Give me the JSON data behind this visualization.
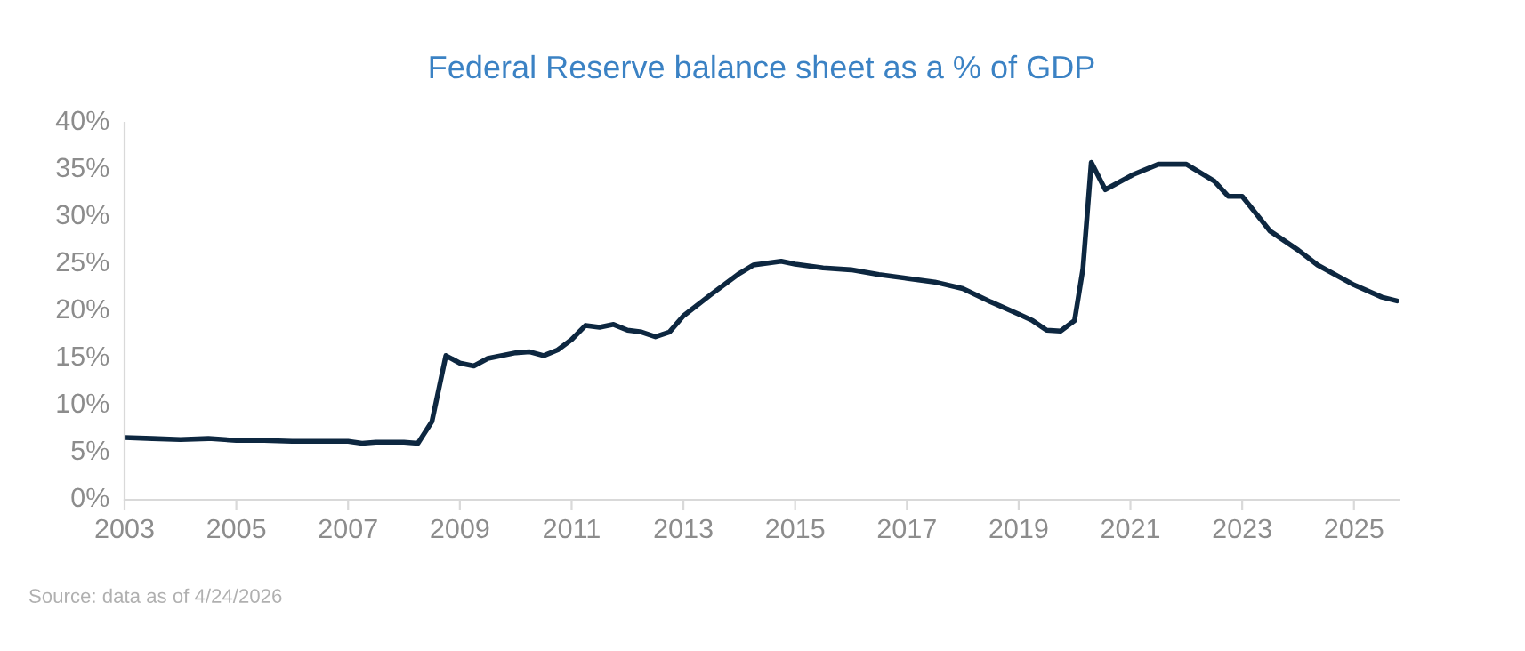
{
  "chart_data": {
    "type": "line",
    "title": "Federal Reserve balance sheet as a % of GDP",
    "x": [
      2003.0,
      2003.5,
      2004.0,
      2004.5,
      2005.0,
      2005.5,
      2006.0,
      2006.5,
      2007.0,
      2007.25,
      2007.5,
      2008.0,
      2008.25,
      2008.5,
      2008.75,
      2009.0,
      2009.25,
      2009.5,
      2010.0,
      2010.25,
      2010.5,
      2010.75,
      2011.0,
      2011.25,
      2011.5,
      2011.75,
      2012.0,
      2012.25,
      2012.5,
      2012.75,
      2013.0,
      2013.5,
      2014.0,
      2014.25,
      2014.75,
      2015.0,
      2015.5,
      2016.0,
      2016.5,
      2017.0,
      2017.5,
      2018.0,
      2018.5,
      2019.0,
      2019.25,
      2019.5,
      2019.75,
      2020.0,
      2020.15,
      2020.3,
      2020.55,
      2021.05,
      2021.5,
      2022.0,
      2022.5,
      2022.75,
      2023.0,
      2023.5,
      2024.0,
      2024.35,
      2025.0,
      2025.5,
      2025.77
    ],
    "series": [
      {
        "color": "#0d2740",
        "values": [
          6.6,
          6.5,
          6.4,
          6.5,
          6.3,
          6.3,
          6.2,
          6.2,
          6.2,
          6.0,
          6.1,
          6.1,
          6.0,
          8.3,
          15.3,
          14.5,
          14.2,
          15.0,
          15.6,
          15.7,
          15.3,
          15.9,
          17.0,
          18.5,
          18.3,
          18.6,
          18.0,
          17.8,
          17.3,
          17.8,
          19.5,
          21.8,
          24.0,
          24.9,
          25.3,
          25.0,
          24.6,
          24.4,
          23.9,
          23.5,
          23.1,
          22.4,
          21.0,
          19.7,
          19.0,
          18.0,
          17.9,
          19.0,
          24.5,
          35.8,
          32.9,
          34.5,
          35.6,
          35.6,
          33.8,
          32.2,
          32.2,
          28.5,
          26.5,
          24.9,
          22.8,
          21.5,
          21.1
        ]
      }
    ],
    "xlim": [
      2003,
      2025.8
    ],
    "xticks": [
      2003,
      2005,
      2007,
      2009,
      2011,
      2013,
      2015,
      2017,
      2019,
      2021,
      2023,
      2025
    ],
    "ylim": [
      0,
      40
    ],
    "yticks": [
      {
        "value": 0,
        "label": "0%"
      },
      {
        "value": 5,
        "label": "5%"
      },
      {
        "value": 10,
        "label": "10%"
      },
      {
        "value": 15,
        "label": "15%"
      },
      {
        "value": 20,
        "label": "20%"
      },
      {
        "value": 25,
        "label": "25%"
      },
      {
        "value": 30,
        "label": "30%"
      },
      {
        "value": 35,
        "label": "35%"
      },
      {
        "value": 40,
        "label": "40%"
      }
    ],
    "grid": false,
    "legend": false,
    "annotations": [
      "Source: data as of 4/24/2026"
    ]
  }
}
